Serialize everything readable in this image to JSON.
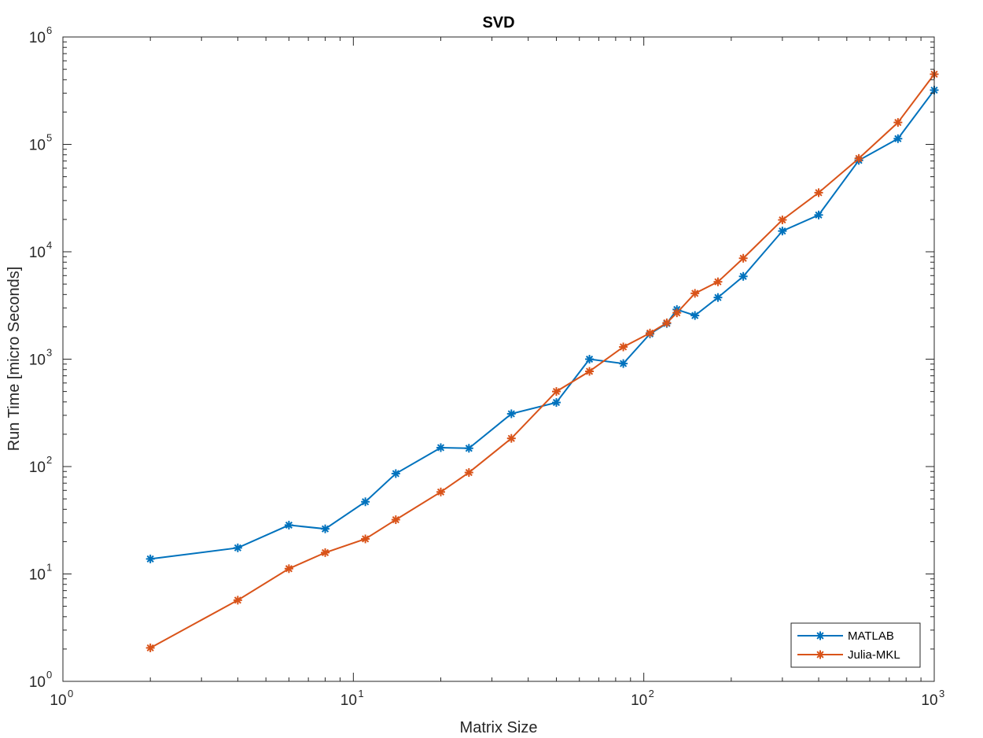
{
  "chart_data": {
    "type": "line",
    "title": "SVD",
    "xlabel": "Matrix Size",
    "ylabel": "Run Time  [micro Seconds]",
    "xscale": "log",
    "yscale": "log",
    "xlim": [
      1,
      1000
    ],
    "ylim": [
      1,
      1000000
    ],
    "x_ticks": [
      {
        "base": "10",
        "exp": "0",
        "value": 1
      },
      {
        "base": "10",
        "exp": "1",
        "value": 10
      },
      {
        "base": "10",
        "exp": "2",
        "value": 100
      },
      {
        "base": "10",
        "exp": "3",
        "value": 1000
      }
    ],
    "y_ticks": [
      {
        "base": "10",
        "exp": "0",
        "value": 1
      },
      {
        "base": "10",
        "exp": "1",
        "value": 10
      },
      {
        "base": "10",
        "exp": "2",
        "value": 100
      },
      {
        "base": "10",
        "exp": "3",
        "value": 1000
      },
      {
        "base": "10",
        "exp": "4",
        "value": 10000
      },
      {
        "base": "10",
        "exp": "5",
        "value": 100000
      },
      {
        "base": "10",
        "exp": "6",
        "value": 1000000
      }
    ],
    "grid": false,
    "legend": "bottom-right",
    "x": [
      2,
      4,
      6,
      8,
      11,
      14,
      20,
      25,
      35,
      50,
      65,
      85,
      105,
      120,
      130,
      150,
      180,
      220,
      300,
      400,
      550,
      750,
      1000
    ],
    "series": [
      {
        "name": "MATLAB",
        "color": "#0072BD",
        "marker": "asterisk",
        "values": [
          13.8,
          17.5,
          28.5,
          26.3,
          47,
          86,
          150,
          148,
          310,
          395,
          1000,
          910,
          1720,
          2150,
          2900,
          2550,
          3750,
          5900,
          15600,
          22000,
          71000,
          113000,
          320000
        ]
      },
      {
        "name": "Julia-MKL",
        "color": "#D95319",
        "marker": "asterisk",
        "values": [
          2.05,
          5.7,
          11.2,
          15.8,
          21.2,
          32,
          58,
          88,
          183,
          500,
          770,
          1300,
          1750,
          2180,
          2700,
          4100,
          5250,
          8700,
          19800,
          35500,
          74000,
          160000,
          450000
        ]
      }
    ]
  }
}
